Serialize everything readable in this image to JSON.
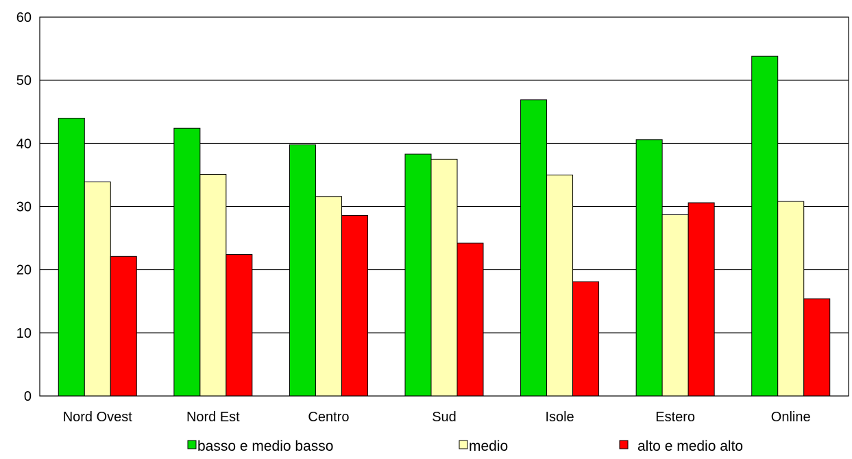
{
  "chart_data": {
    "type": "bar",
    "title": "",
    "xlabel": "",
    "ylabel": "",
    "ylim": [
      0,
      60
    ],
    "yticks": [
      0,
      10,
      20,
      30,
      40,
      50,
      60
    ],
    "grid": true,
    "legend_placement": "bottom",
    "categories": [
      "Nord Ovest",
      "Nord Est",
      "Centro",
      "Sud",
      "Isole",
      "Estero",
      "Online"
    ],
    "series": [
      {
        "name": "basso e medio basso",
        "color": "#00dd00",
        "values": [
          44.0,
          42.4,
          39.8,
          38.3,
          46.9,
          40.6,
          53.8
        ]
      },
      {
        "name": "medio",
        "color": "#ffffb3",
        "values": [
          33.9,
          35.1,
          31.6,
          37.5,
          35.0,
          28.7,
          30.8
        ]
      },
      {
        "name": "alto e medio alto",
        "color": "#ff0000",
        "values": [
          22.1,
          22.4,
          28.6,
          24.2,
          18.1,
          30.6,
          15.4
        ]
      }
    ]
  }
}
